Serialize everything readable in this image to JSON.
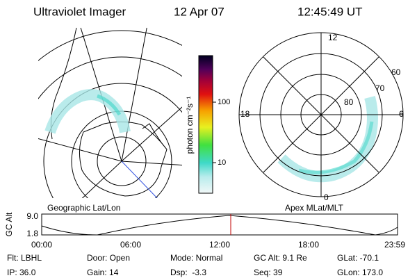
{
  "header": {
    "title": "Ultraviolet Imager",
    "date": "12 Apr 07",
    "time": "12:45:49 UT"
  },
  "colorbar": {
    "label": "photon cm⁻²s⁻¹",
    "ticks": [
      "100",
      "10"
    ]
  },
  "left_panel": {
    "label": "Geographic Lat/Lon"
  },
  "right_panel": {
    "label": "Apex MLat/MLT",
    "mlt_labels": [
      "12",
      "18",
      "6",
      "0"
    ],
    "mlat_labels": [
      "60",
      "70",
      "80"
    ]
  },
  "altitude_plot": {
    "ylabel": "GC Alt",
    "yticks": [
      "9.0",
      "1.8"
    ],
    "xticks": [
      "00:00",
      "06:00",
      "12:00",
      "18:00",
      "23:59"
    ]
  },
  "status": {
    "rows": [
      [
        "Flt: LBHL",
        "Door: Open",
        "Mode: Normal",
        "GC Alt: 9.1 Re",
        "GLat: -70.1"
      ],
      [
        "IP: 36.0",
        "Gain: 14",
        "Dsp:  -3.3",
        "Seq: 39",
        "GLon: 173.0"
      ]
    ]
  }
}
